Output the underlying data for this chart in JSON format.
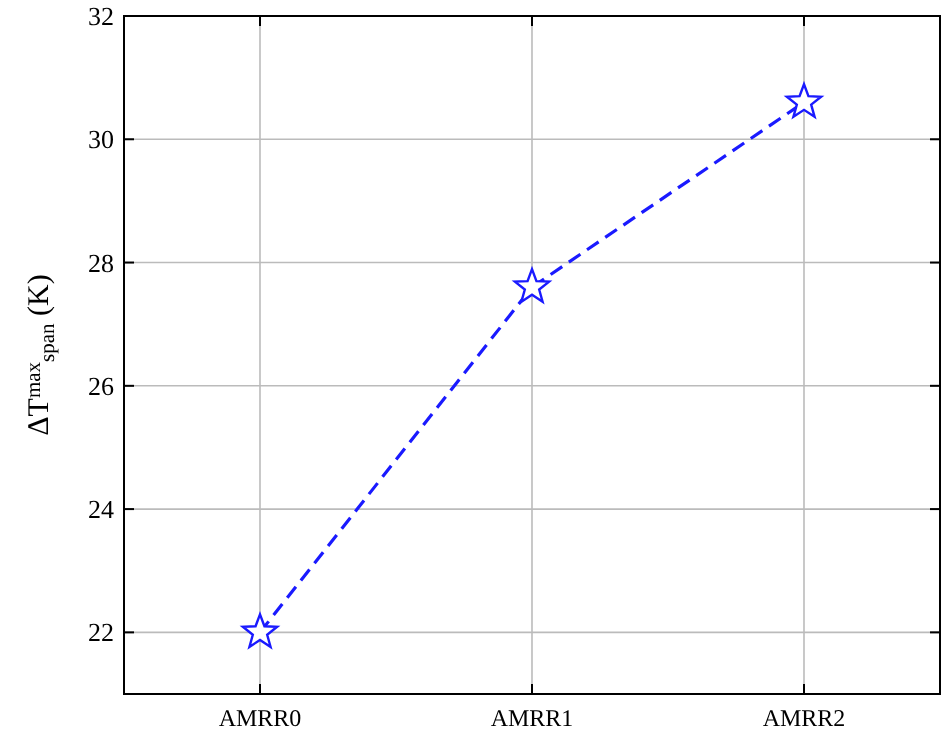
{
  "chart_data": {
    "type": "line",
    "ylabel": "ΔT$^{max}$$_{span}$ (K)",
    "categories": [
      "AMRR0",
      "AMRR1",
      "AMRR2"
    ],
    "series": [
      {
        "color": "#1a1aff",
        "values": [
          22.0,
          27.6,
          30.6
        ]
      }
    ],
    "ylim": [
      21,
      32
    ],
    "yticks": [
      22,
      24,
      26,
      28,
      30,
      32
    ],
    "grid": true,
    "marker": "star",
    "line_style": "dashed"
  }
}
